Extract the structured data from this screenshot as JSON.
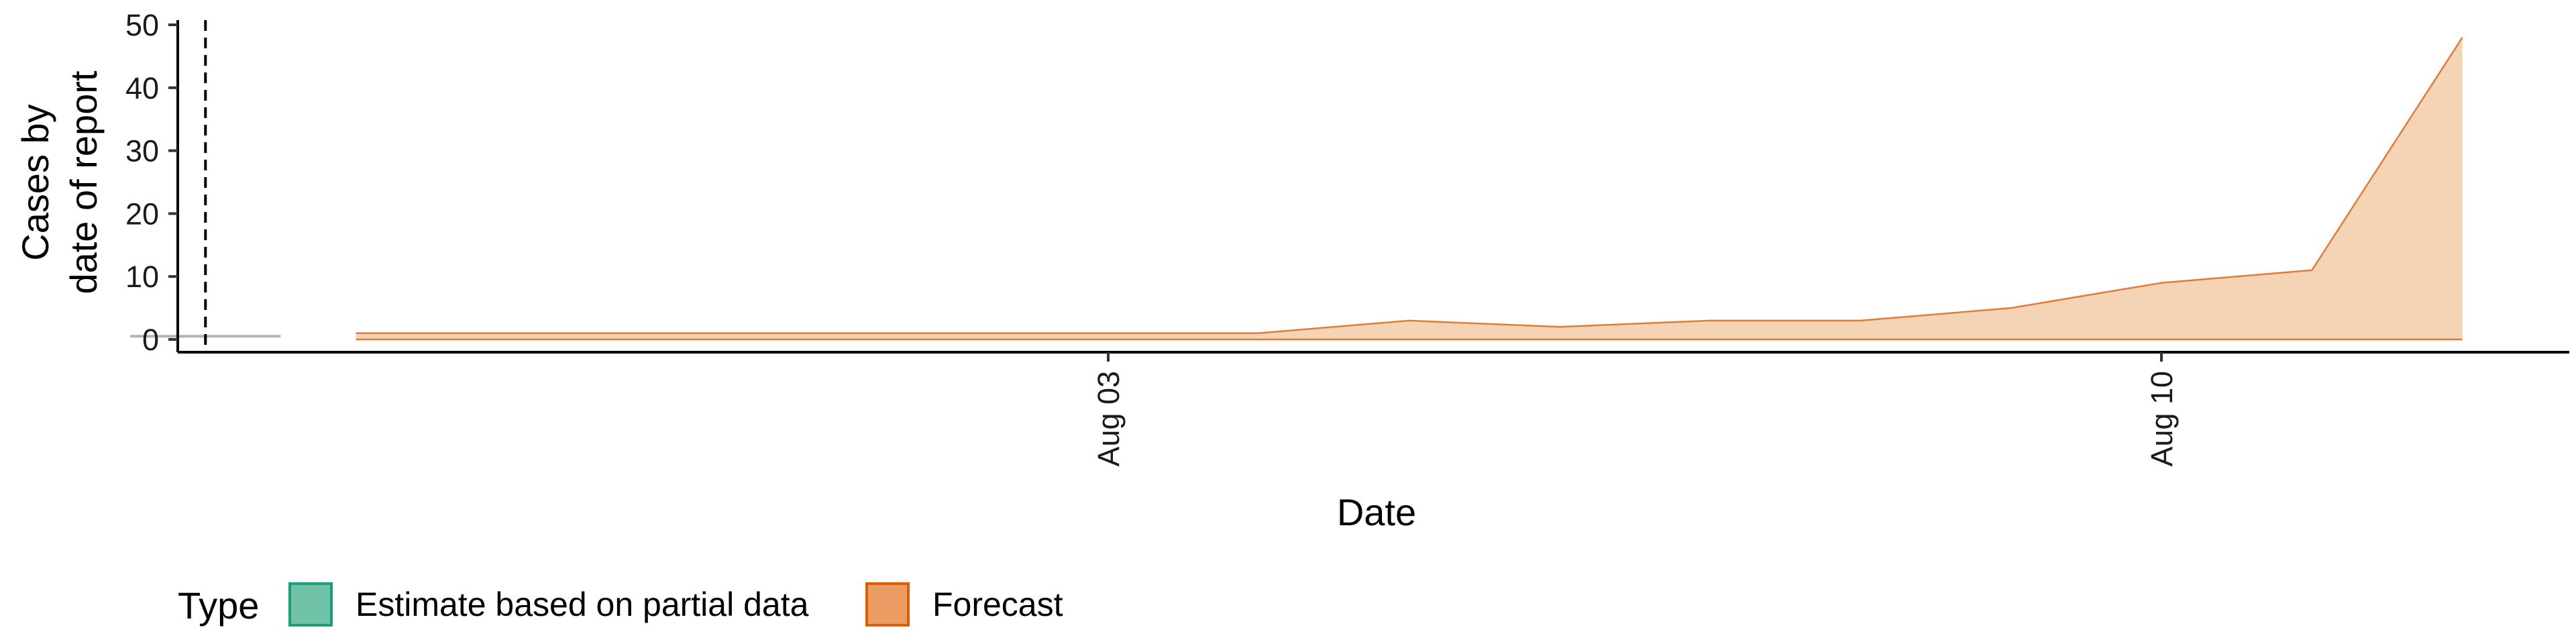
{
  "chart_data": {
    "type": "area",
    "xlabel": "Date",
    "ylabel_lines": [
      "Cases by",
      "date of report"
    ],
    "ylim": [
      0,
      50
    ],
    "yticks": [
      0,
      10,
      20,
      30,
      40,
      50
    ],
    "xlim": [
      "2020-07-27",
      "2020-08-12"
    ],
    "xticks": [
      {
        "date": "2020-08-03",
        "label": "Aug 03"
      },
      {
        "date": "2020-08-10",
        "label": "Aug 10"
      }
    ],
    "reference_line": {
      "date": "2020-07-28"
    },
    "estimate_segment": {
      "x": [
        "2020-07-27T12:00",
        "2020-07-28T12:00"
      ],
      "y": 0.5
    },
    "forecast": {
      "dates": [
        "2020-07-29",
        "2020-07-30",
        "2020-07-31",
        "2020-08-01",
        "2020-08-02",
        "2020-08-03",
        "2020-08-04",
        "2020-08-05",
        "2020-08-06",
        "2020-08-07",
        "2020-08-08",
        "2020-08-09",
        "2020-08-10",
        "2020-08-11",
        "2020-08-12"
      ],
      "upper": [
        1,
        1,
        1,
        1,
        1,
        1,
        1,
        3,
        2,
        3,
        3,
        5,
        9,
        11,
        48
      ],
      "lower": [
        0,
        0,
        0,
        0,
        0,
        0,
        0,
        0,
        0,
        0,
        0,
        0,
        0,
        0,
        0
      ]
    },
    "legend": {
      "title": "Type",
      "position": "bottom",
      "items": [
        {
          "label": "Estimate based on partial data",
          "fill": "#6fc2a8",
          "stroke": "#1b9e77"
        },
        {
          "label": "Forecast",
          "fill": "#eb9c64",
          "stroke": "#d95f02"
        }
      ]
    },
    "colors": {
      "forecast_fill": "#f5d4b6",
      "forecast_line": "#e07b39",
      "estimate_line": "#b3b3b3",
      "reference_line": "#000000"
    }
  }
}
